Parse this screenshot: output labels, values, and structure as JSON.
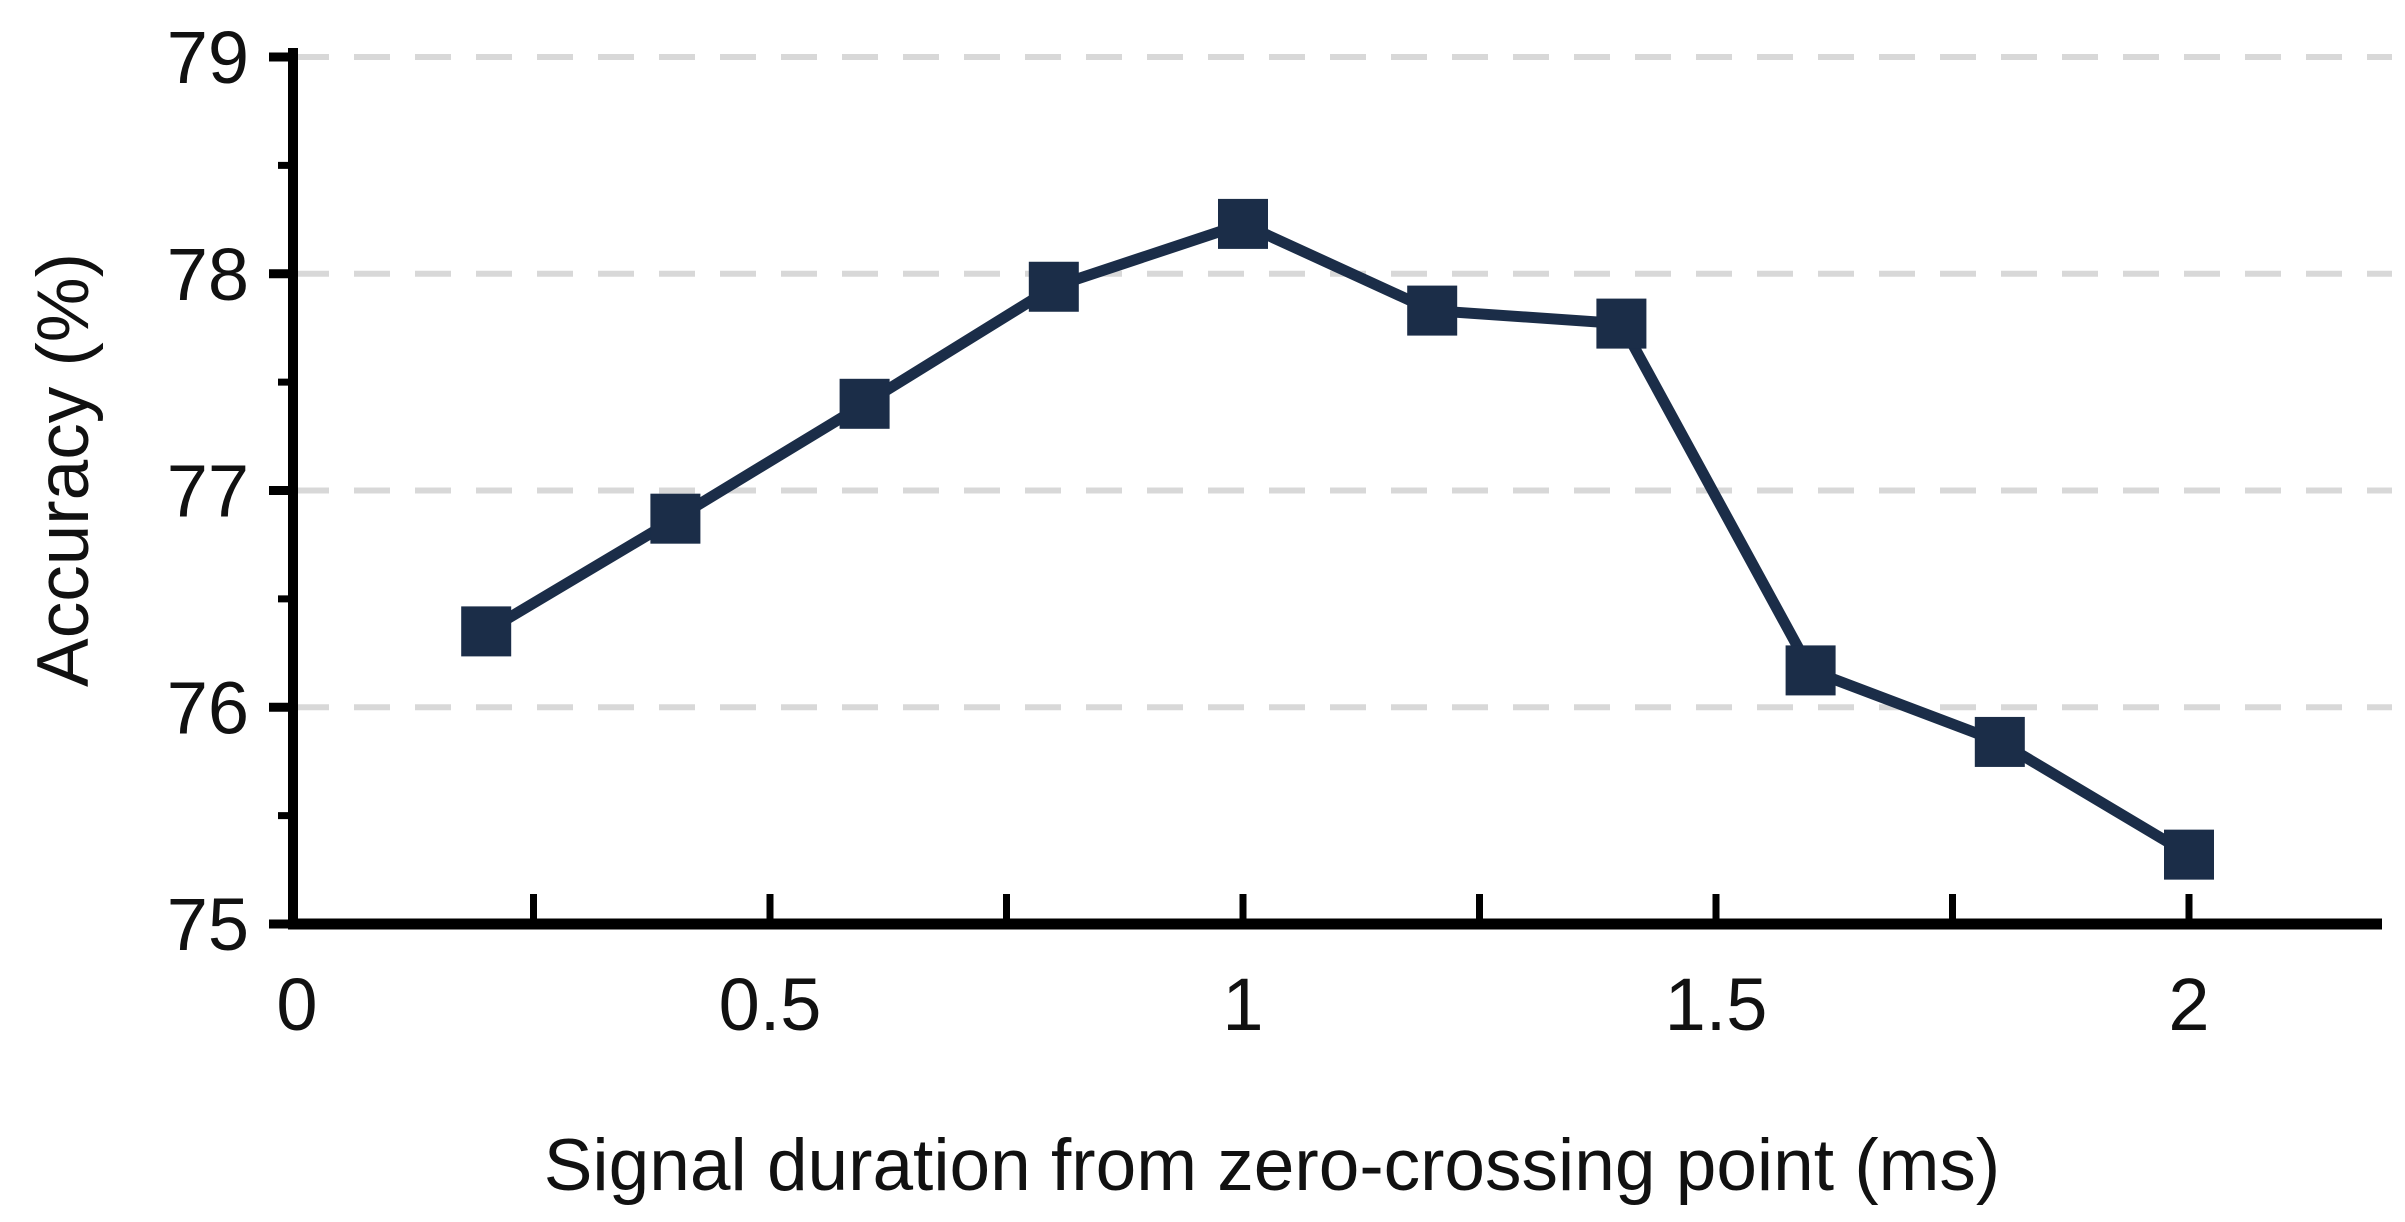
{
  "chart_data": {
    "type": "line",
    "title": "",
    "xlabel": "Signal duration from zero-crossing point (ms)",
    "ylabel": "Accuracy (%)",
    "x": [
      0.2,
      0.4,
      0.6,
      0.8,
      1.0,
      1.2,
      1.4,
      1.6,
      1.8,
      2.0
    ],
    "series": [
      {
        "name": "Accuracy",
        "values": [
          76.35,
          76.87,
          77.4,
          77.94,
          78.23,
          77.83,
          77.77,
          76.17,
          75.84,
          75.32
        ]
      }
    ],
    "xlim": [
      0,
      2.2
    ],
    "ylim": [
      75,
      79
    ],
    "x_ticks": {
      "labeled_values": [
        0,
        0.5,
        1,
        1.5,
        2
      ],
      "labels": [
        "0",
        "0.5",
        "1",
        "1.5",
        "2"
      ],
      "minor_step": 0.25
    },
    "y_ticks": {
      "labeled_values": [
        75,
        76,
        77,
        78,
        79
      ],
      "labels": [
        "75",
        "76",
        "77",
        "78",
        "79"
      ],
      "minor_step": 0.5
    },
    "gridlines": {
      "orientation": "horizontal",
      "values": [
        76,
        77,
        78,
        79
      ],
      "style": "dashed"
    },
    "legend": {
      "visible": false
    },
    "marker": {
      "shape": "square"
    },
    "colors": {
      "series": "#1b2d48",
      "grid": "#d8d8d8",
      "axis": "#000000",
      "text": "#111111",
      "background": "#ffffff"
    }
  }
}
